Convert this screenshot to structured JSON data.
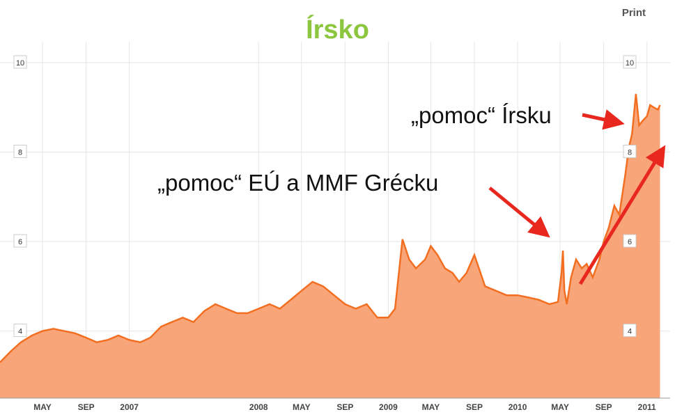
{
  "header": {
    "title": "Írsko",
    "print_label": "Print"
  },
  "colors": {
    "title": "#8cc63f",
    "line": "#f26f21",
    "fill": "#f9a57a",
    "arrow": "#e8281e",
    "grid": "#e6e6e6"
  },
  "annotations": {
    "greece": "„pomoc“ EÚ a MMF Grécku",
    "ireland": "„pomoc“ Írsku"
  },
  "chart_data": {
    "type": "area",
    "title": "Írsko",
    "xlabel": "",
    "ylabel": "",
    "ylim": [
      2.5,
      11.4
    ],
    "xlim": [
      "2006-01-01",
      "2011-02-08"
    ],
    "y_ticks": [
      4,
      6,
      8,
      10
    ],
    "x_ticks": [
      {
        "label": "MAY",
        "x": "2006-05-01"
      },
      {
        "label": "SEP",
        "x": "2006-09-01"
      },
      {
        "label": "2007",
        "x": "2007-01-01"
      },
      {
        "label": "2008",
        "x": "2008-01-01"
      },
      {
        "label": "MAY",
        "x": "2008-05-01"
      },
      {
        "label": "SEP",
        "x": "2008-09-01"
      },
      {
        "label": "2009",
        "x": "2009-01-01"
      },
      {
        "label": "MAY",
        "x": "2009-05-01"
      },
      {
        "label": "SEP",
        "x": "2009-09-01"
      },
      {
        "label": "2010",
        "x": "2010-01-01"
      },
      {
        "label": "MAY",
        "x": "2010-05-01"
      },
      {
        "label": "SEP",
        "x": "2010-09-01"
      },
      {
        "label": "2011",
        "x": "2011-01-01"
      }
    ],
    "grid": true,
    "series": [
      {
        "x": [
          "2006-01-01",
          "2006-02-01",
          "2006-03-01",
          "2006-04-01",
          "2006-05-01",
          "2006-06-01",
          "2006-07-01",
          "2006-08-01",
          "2006-09-01",
          "2006-10-01",
          "2006-11-01",
          "2006-12-01",
          "2007-01-01",
          "2007-02-01",
          "2007-03-01",
          "2007-04-01",
          "2007-05-01",
          "2007-06-01",
          "2007-07-01",
          "2007-08-01",
          "2007-09-01",
          "2007-10-01",
          "2007-11-01",
          "2007-12-01",
          "2008-01-01",
          "2008-02-01",
          "2008-03-01",
          "2008-04-01",
          "2008-05-01",
          "2008-06-01",
          "2008-07-01",
          "2008-08-01",
          "2008-09-01",
          "2008-10-01",
          "2008-11-01",
          "2008-12-01",
          "2009-01-01",
          "2009-01-20",
          "2009-02-10",
          "2009-03-01",
          "2009-03-20",
          "2009-04-15",
          "2009-05-01",
          "2009-05-20",
          "2009-06-10",
          "2009-07-01",
          "2009-07-20",
          "2009-08-10",
          "2009-09-01",
          "2009-10-01",
          "2009-11-01",
          "2009-12-01",
          "2010-01-01",
          "2010-02-01",
          "2010-03-01",
          "2010-04-01",
          "2010-04-25",
          "2010-05-05",
          "2010-05-09",
          "2010-05-13",
          "2010-05-20",
          "2010-06-01",
          "2010-06-15",
          "2010-07-01",
          "2010-07-15",
          "2010-08-01",
          "2010-08-20",
          "2010-09-01",
          "2010-09-15",
          "2010-10-01",
          "2010-10-15",
          "2010-11-01",
          "2010-11-11",
          "2010-11-20",
          "2010-12-01",
          "2010-12-10",
          "2010-12-20",
          "2011-01-01",
          "2011-01-10",
          "2011-01-20",
          "2011-02-01",
          "2011-02-07"
        ],
        "y": [
          3.3,
          3.55,
          3.75,
          3.9,
          4.0,
          4.05,
          4.0,
          3.95,
          3.85,
          3.75,
          3.8,
          3.9,
          3.8,
          3.75,
          3.85,
          4.1,
          4.2,
          4.3,
          4.2,
          4.45,
          4.6,
          4.5,
          4.4,
          4.4,
          4.5,
          4.6,
          4.5,
          4.7,
          4.9,
          5.1,
          5.0,
          4.8,
          4.6,
          4.5,
          4.6,
          4.3,
          4.3,
          4.5,
          6.05,
          5.6,
          5.4,
          5.6,
          5.9,
          5.7,
          5.4,
          5.3,
          5.1,
          5.3,
          5.7,
          5.0,
          4.9,
          4.8,
          4.8,
          4.75,
          4.7,
          4.6,
          4.65,
          5.3,
          5.8,
          4.9,
          4.6,
          5.2,
          5.6,
          5.4,
          5.5,
          5.2,
          5.6,
          6.0,
          6.3,
          6.8,
          6.6,
          7.5,
          8.1,
          8.4,
          9.3,
          8.6,
          8.7,
          8.8,
          9.05,
          9.0,
          8.95,
          9.05
        ]
      }
    ]
  }
}
